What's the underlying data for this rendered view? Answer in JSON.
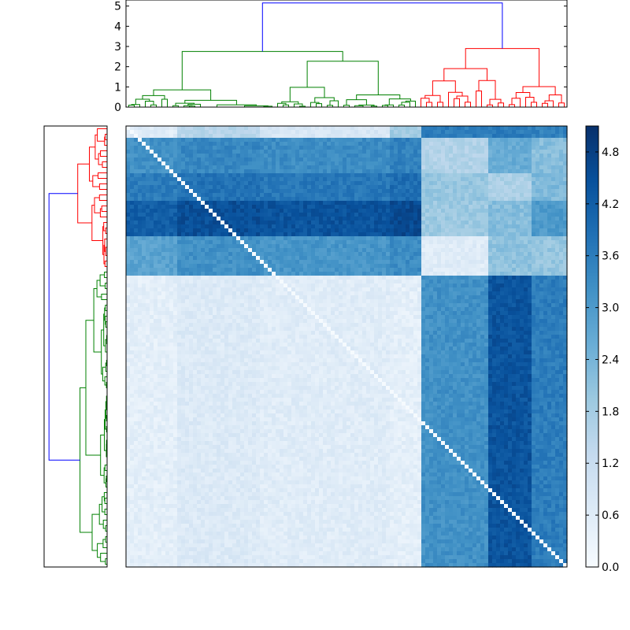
{
  "chart_data": {
    "type": "heatmap",
    "description_kind": "clustered distance matrix with top and left dendrograms",
    "top_dendrogram": {
      "y_ticks": [
        "0",
        "1",
        "2",
        "3",
        "4",
        "5"
      ],
      "ylim": [
        0,
        5.3
      ],
      "root_height": 5.15,
      "clusters": [
        {
          "color": "#008000",
          "share": 0.66,
          "height": 2.75
        },
        {
          "color": "#ff0000",
          "share": 0.34,
          "height": 2.9
        }
      ],
      "link_color": "#0000ff"
    },
    "left_dendrogram": {
      "clusters": [
        {
          "color": "#ff0000",
          "share": 0.33
        },
        {
          "color": "#008000",
          "share": 0.67
        }
      ],
      "link_color": "#0000ff"
    },
    "heatmap": {
      "colormap": "Blues",
      "vmin": 0.0,
      "vmax": 5.1,
      "n_leaves": 80,
      "row_blocks": [
        {
          "share": 0.03,
          "dark": [
            0.6,
            1.5,
            0.8,
            1.8
          ],
          "light": [
            3.6,
            3.6,
            3.5
          ]
        },
        {
          "share": 0.08,
          "dark": [
            3.2,
            3.4,
            3.3,
            3.5
          ],
          "light": [
            1.6,
            2.6,
            2.2
          ]
        },
        {
          "share": 0.06,
          "dark": [
            3.6,
            3.8,
            3.7,
            3.9
          ],
          "light": [
            2.0,
            1.7,
            2.3
          ]
        },
        {
          "share": 0.08,
          "dark": [
            4.2,
            4.5,
            4.4,
            4.6
          ],
          "light": [
            1.9,
            2.2,
            3.0
          ]
        },
        {
          "share": 0.09,
          "dark": [
            2.8,
            3.2,
            3.1,
            3.3
          ],
          "light": [
            0.6,
            2.1,
            2.0
          ]
        },
        {
          "share": 0.66,
          "dark": [
            0.5,
            0.7,
            0.6,
            0.5
          ],
          "light": [
            3.2,
            4.4,
            3.6
          ]
        }
      ],
      "col_blocks_share": [
        0.12,
        0.18,
        0.3,
        0.07,
        0.09,
        0.06,
        0.05,
        0.05,
        0.03,
        0.05
      ]
    },
    "colorbar": {
      "ticks": [
        "0.0",
        "0.6",
        "1.2",
        "1.8",
        "2.4",
        "3.0",
        "3.6",
        "4.2",
        "4.8"
      ],
      "tick_values": [
        0.0,
        0.6,
        1.2,
        1.8,
        2.4,
        3.0,
        3.6,
        4.2,
        4.8
      ],
      "range": [
        0.0,
        5.1
      ]
    }
  }
}
